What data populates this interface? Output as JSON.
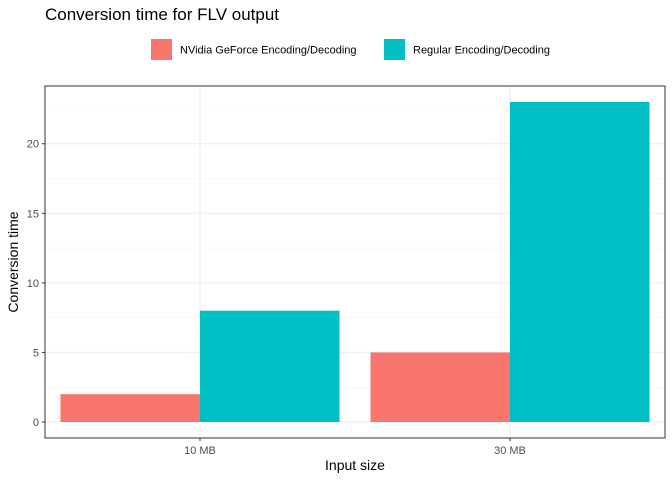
{
  "chart_data": {
    "type": "bar",
    "title": "Conversion time for FLV output",
    "xlabel": "Input size",
    "ylabel": "Conversion time",
    "categories": [
      "10 MB",
      "30 MB"
    ],
    "series": [
      {
        "name": "NVidia GeForce Encoding/Decoding",
        "values": [
          2,
          5
        ],
        "color": "#F8766D"
      },
      {
        "name": "Regular Encoding/Decoding",
        "values": [
          8,
          23
        ],
        "color": "#00BFC4"
      }
    ],
    "ylim": [
      -1.15,
      24.15
    ],
    "yticks": [
      0,
      5,
      10,
      15,
      20
    ],
    "ytick_labels": [
      "0",
      "5",
      "10",
      "15",
      "20"
    ],
    "grid": true,
    "legend_position": "top"
  }
}
